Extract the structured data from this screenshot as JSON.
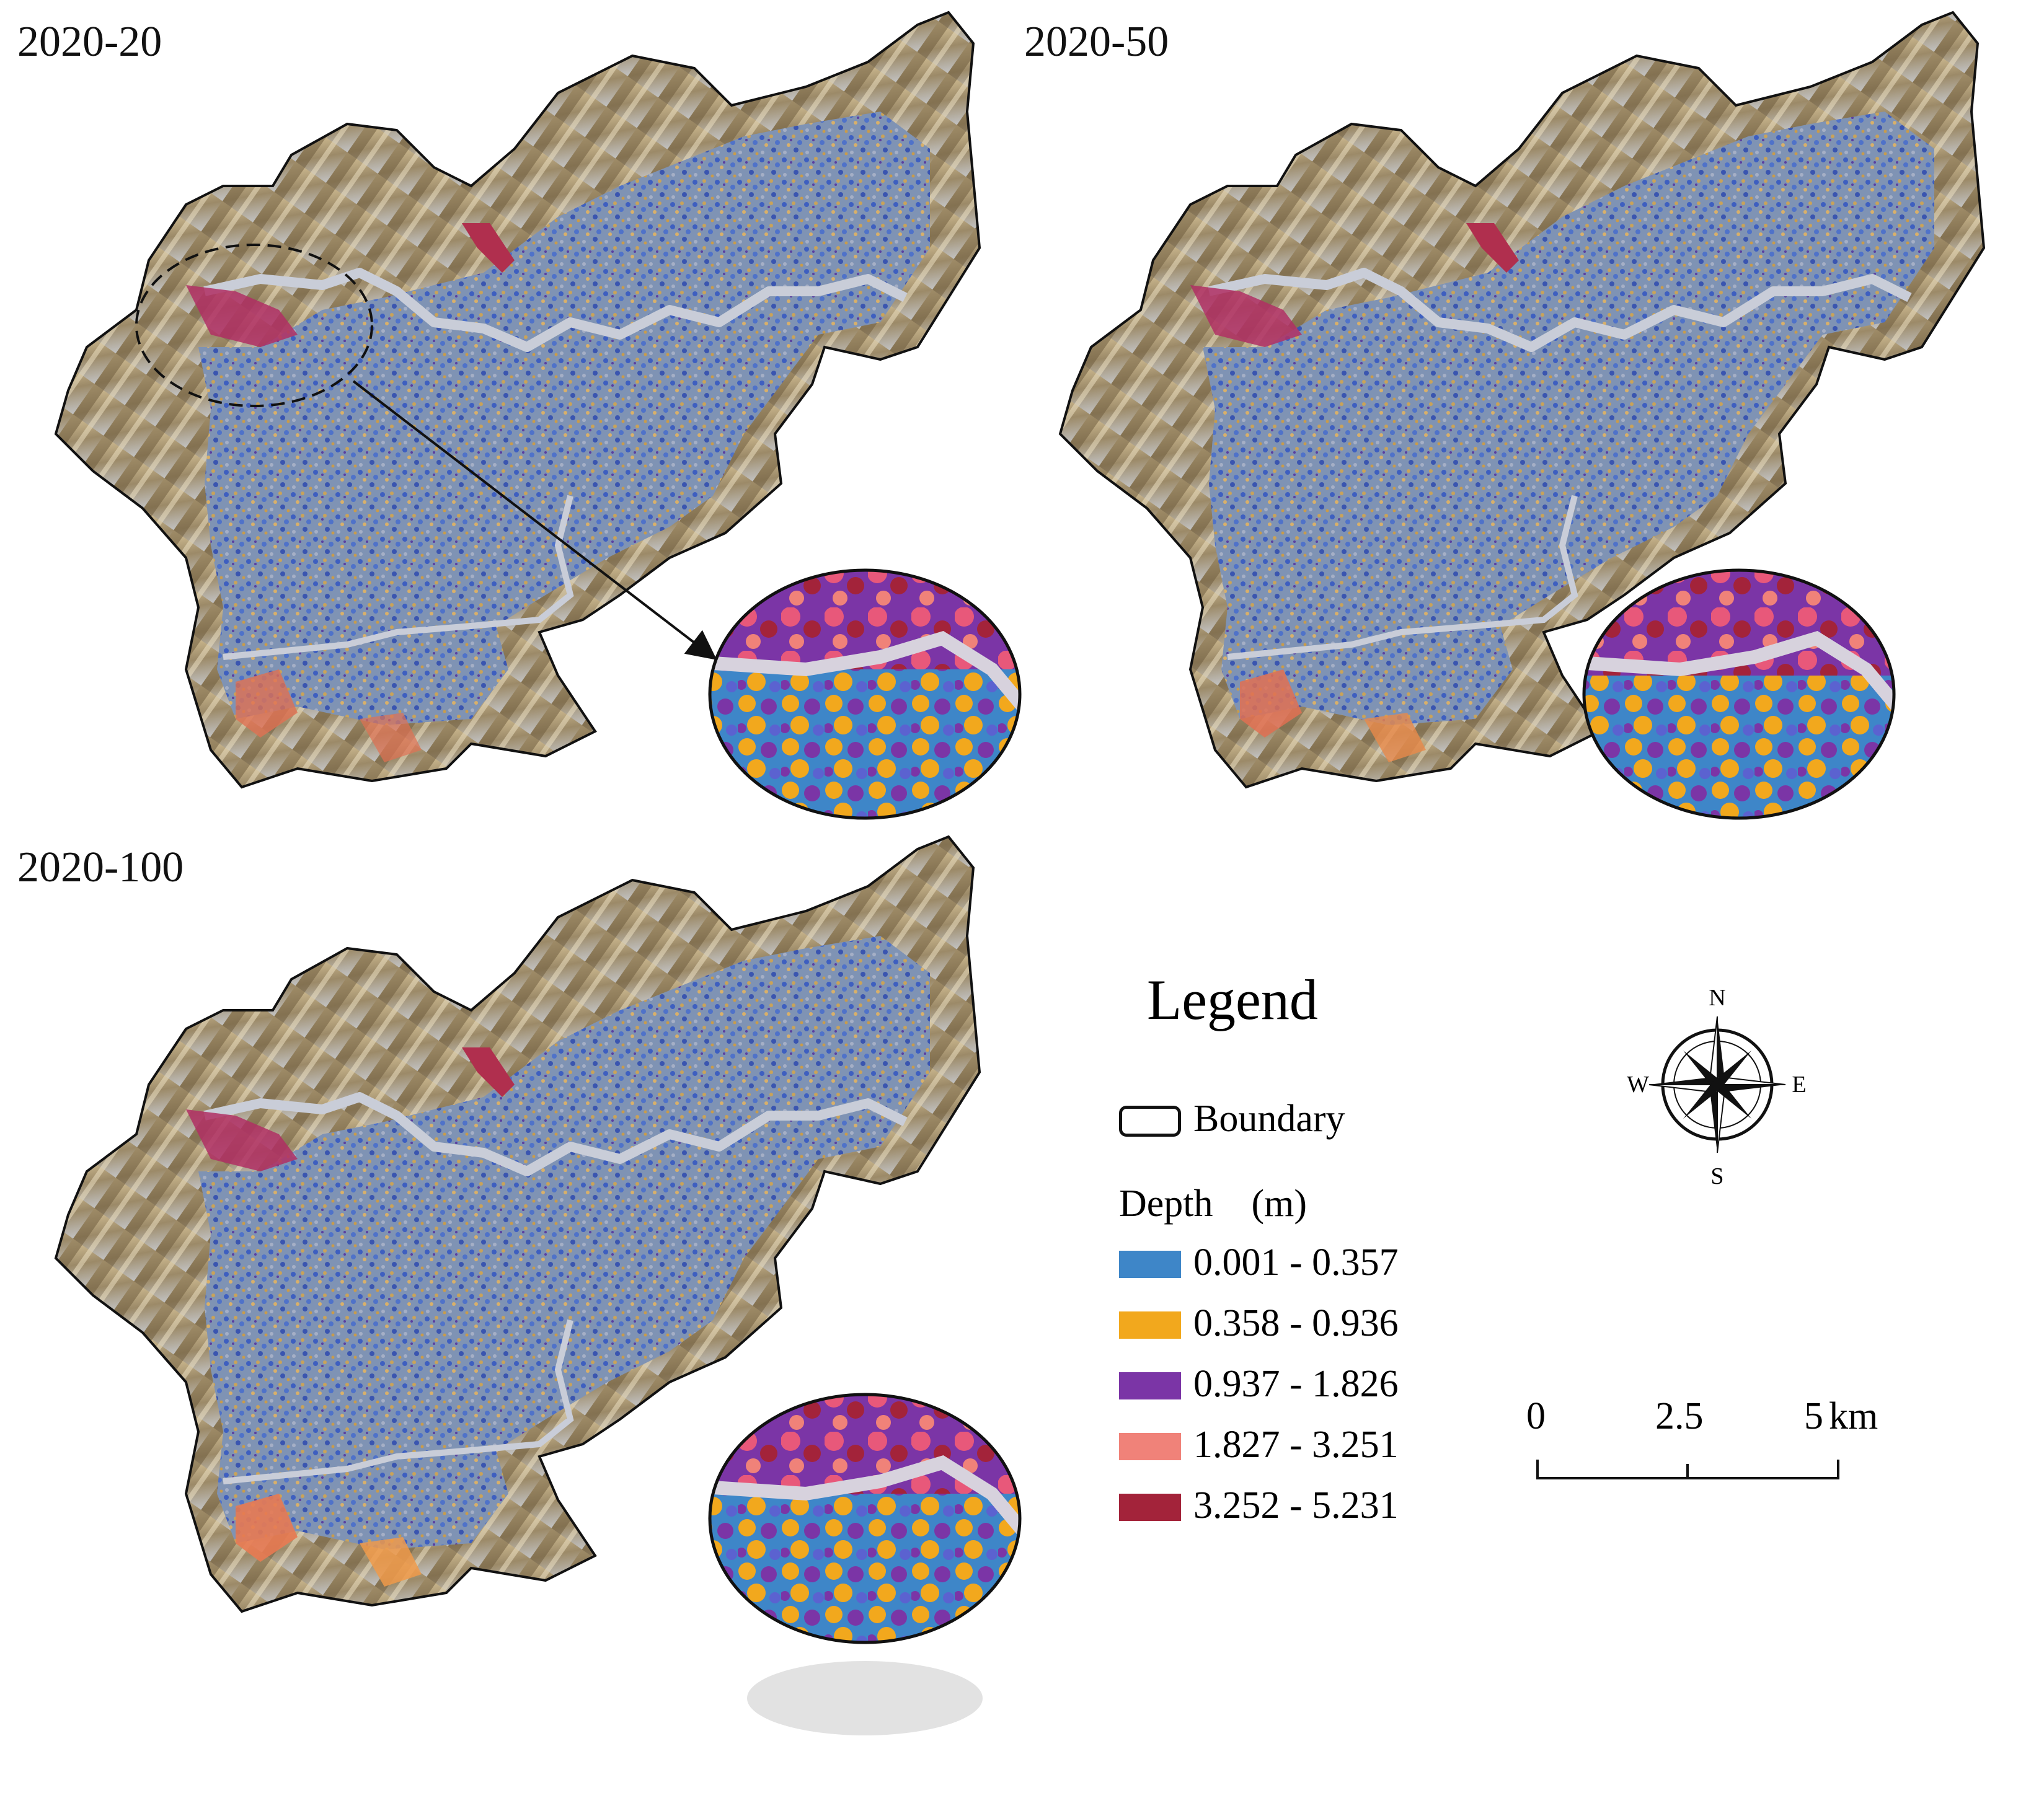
{
  "panels": [
    {
      "title": "2020-20"
    },
    {
      "title": "2020-50"
    },
    {
      "title": "2020-100"
    }
  ],
  "legend": {
    "title": "Legend",
    "boundary_label": "Boundary",
    "depth_title": "Depth　(m)",
    "classes": [
      {
        "label": "0.001 - 0.357",
        "color": "#3e86c8"
      },
      {
        "label": "0.358 - 0.936",
        "color": "#f2a81d"
      },
      {
        "label": "0.937 - 1.826",
        "color": "#7b35a6"
      },
      {
        "label": "1.827 - 3.251",
        "color": "#f08279"
      },
      {
        "label": "3.252 - 5.231",
        "color": "#a3233a"
      }
    ]
  },
  "compass": {
    "n": "N",
    "s": "S",
    "e": "E",
    "w": "W"
  },
  "scalebar": {
    "ticks": [
      "0",
      "2.5",
      "5"
    ],
    "unit": "km"
  },
  "colors": {
    "terrain_light": "#d4c5a1",
    "terrain_dark": "#8a7650",
    "urban_base": "#8fa0b5",
    "river": "#c9cdd8",
    "hillshade": "#b9b9b9"
  }
}
